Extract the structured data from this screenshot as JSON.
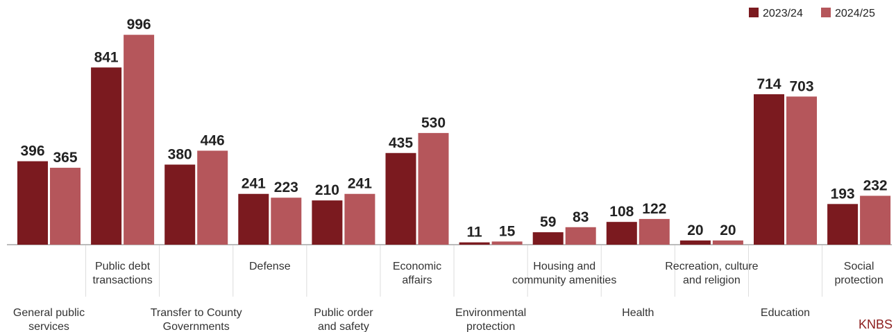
{
  "chart_data": {
    "type": "bar",
    "categories": [
      "General public services",
      "Public debt transactions",
      "Transfer to County Governments",
      "Defense",
      "Public order and safety",
      "Economic affairs",
      "Environmental protection",
      "Housing and community amenities",
      "Health",
      "Recreation, culture and religion",
      "Education",
      "Social protection"
    ],
    "category_lines": [
      [
        "General public",
        "services"
      ],
      [
        "Public debt",
        "transactions"
      ],
      [
        "Transfer to County",
        "Governments"
      ],
      [
        "Defense"
      ],
      [
        "Public order",
        "and safety"
      ],
      [
        "Economic",
        "affairs"
      ],
      [
        "Environmental",
        "protection"
      ],
      [
        "Housing and",
        "community amenities"
      ],
      [
        "Health"
      ],
      [
        "Recreation, culture",
        "and religion"
      ],
      [
        "Education"
      ],
      [
        "Social",
        "protection"
      ]
    ],
    "series": [
      {
        "name": "2023/24",
        "color": "#7b1a1f",
        "values": [
          396,
          841,
          380,
          241,
          210,
          435,
          11,
          59,
          108,
          20,
          714,
          193
        ]
      },
      {
        "name": "2024/25",
        "color": "#b5565b",
        "values": [
          365,
          996,
          446,
          223,
          241,
          530,
          15,
          83,
          122,
          20,
          703,
          232
        ]
      }
    ],
    "legend_position": "top-right",
    "grid": false,
    "title": "",
    "xlabel": "",
    "ylabel": ""
  },
  "source_label": "KNBS"
}
